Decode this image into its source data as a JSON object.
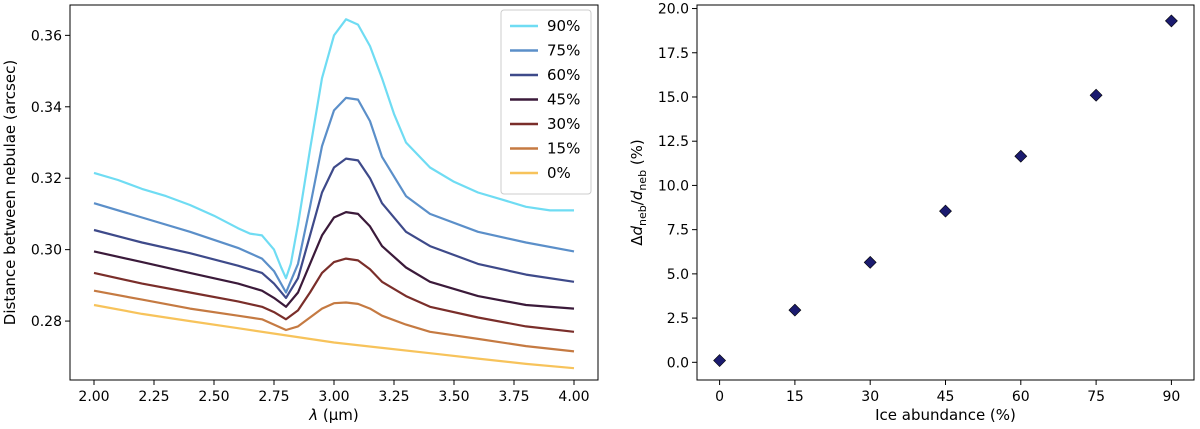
{
  "chart_data": [
    {
      "type": "line",
      "xlabel_symbol": "λ",
      "xlabel_unit": "(μm)",
      "ylabel": "Distance between nebulae (arcsec)",
      "xlim": [
        1.9,
        4.1
      ],
      "ylim": [
        0.2635,
        0.3685
      ],
      "xticks": [
        2.0,
        2.25,
        2.5,
        2.75,
        3.0,
        3.25,
        3.5,
        3.75,
        4.0
      ],
      "xtick_labels": [
        "2.00",
        "2.25",
        "2.50",
        "2.75",
        "3.00",
        "3.25",
        "3.50",
        "3.75",
        "4.00"
      ],
      "yticks": [
        0.28,
        0.3,
        0.32,
        0.34,
        0.36
      ],
      "ytick_labels": [
        "0.28",
        "0.30",
        "0.32",
        "0.34",
        "0.36"
      ],
      "legend_position": "top-right",
      "series": [
        {
          "name": "90%",
          "color": "#6fdcf3",
          "x": [
            2.0,
            2.1,
            2.2,
            2.3,
            2.4,
            2.5,
            2.6,
            2.65,
            2.7,
            2.75,
            2.78,
            2.8,
            2.82,
            2.85,
            2.9,
            2.95,
            3.0,
            3.05,
            3.1,
            3.15,
            3.2,
            3.25,
            3.3,
            3.4,
            3.5,
            3.6,
            3.7,
            3.8,
            3.9,
            4.0
          ],
          "values": [
            0.3215,
            0.3195,
            0.317,
            0.315,
            0.3125,
            0.3095,
            0.306,
            0.3045,
            0.304,
            0.3,
            0.295,
            0.292,
            0.296,
            0.307,
            0.328,
            0.348,
            0.36,
            0.3645,
            0.363,
            0.357,
            0.348,
            0.338,
            0.33,
            0.323,
            0.319,
            0.316,
            0.314,
            0.312,
            0.311,
            0.311
          ]
        },
        {
          "name": "75%",
          "color": "#5b8fc9",
          "x": [
            2.0,
            2.2,
            2.4,
            2.6,
            2.7,
            2.75,
            2.8,
            2.85,
            2.9,
            2.95,
            3.0,
            3.05,
            3.1,
            3.15,
            3.2,
            3.3,
            3.4,
            3.6,
            3.8,
            4.0
          ],
          "values": [
            0.313,
            0.309,
            0.305,
            0.3005,
            0.2975,
            0.294,
            0.288,
            0.296,
            0.312,
            0.329,
            0.339,
            0.3425,
            0.342,
            0.336,
            0.326,
            0.315,
            0.31,
            0.305,
            0.302,
            0.2995
          ]
        },
        {
          "name": "60%",
          "color": "#3e4a8a",
          "x": [
            2.0,
            2.2,
            2.4,
            2.6,
            2.7,
            2.75,
            2.8,
            2.85,
            2.9,
            2.95,
            3.0,
            3.05,
            3.1,
            3.15,
            3.2,
            3.3,
            3.4,
            3.6,
            3.8,
            4.0
          ],
          "values": [
            0.3055,
            0.302,
            0.299,
            0.2955,
            0.2935,
            0.2905,
            0.2865,
            0.292,
            0.304,
            0.316,
            0.323,
            0.3255,
            0.325,
            0.32,
            0.313,
            0.305,
            0.301,
            0.296,
            0.293,
            0.291
          ]
        },
        {
          "name": "45%",
          "color": "#3b1a3a",
          "x": [
            2.0,
            2.2,
            2.4,
            2.6,
            2.7,
            2.75,
            2.8,
            2.85,
            2.9,
            2.95,
            3.0,
            3.05,
            3.1,
            3.15,
            3.2,
            3.3,
            3.4,
            3.6,
            3.8,
            4.0
          ],
          "values": [
            0.2995,
            0.2965,
            0.2935,
            0.2905,
            0.2885,
            0.2865,
            0.284,
            0.288,
            0.296,
            0.304,
            0.309,
            0.3105,
            0.31,
            0.3065,
            0.301,
            0.295,
            0.291,
            0.287,
            0.2845,
            0.2835
          ]
        },
        {
          "name": "30%",
          "color": "#7a2e2a",
          "x": [
            2.0,
            2.2,
            2.4,
            2.6,
            2.7,
            2.75,
            2.8,
            2.85,
            2.9,
            2.95,
            3.0,
            3.05,
            3.1,
            3.15,
            3.2,
            3.3,
            3.4,
            3.6,
            3.8,
            4.0
          ],
          "values": [
            0.2935,
            0.2905,
            0.288,
            0.2855,
            0.284,
            0.2825,
            0.2805,
            0.283,
            0.288,
            0.2935,
            0.2965,
            0.2975,
            0.297,
            0.2945,
            0.291,
            0.287,
            0.284,
            0.281,
            0.2785,
            0.277
          ]
        },
        {
          "name": "15%",
          "color": "#c57a42",
          "x": [
            2.0,
            2.2,
            2.4,
            2.6,
            2.7,
            2.75,
            2.8,
            2.85,
            2.9,
            2.95,
            3.0,
            3.05,
            3.1,
            3.15,
            3.2,
            3.3,
            3.4,
            3.6,
            3.8,
            4.0
          ],
          "values": [
            0.2885,
            0.286,
            0.2835,
            0.2815,
            0.2805,
            0.279,
            0.2775,
            0.2785,
            0.281,
            0.2835,
            0.285,
            0.2852,
            0.2848,
            0.2835,
            0.2815,
            0.279,
            0.277,
            0.275,
            0.273,
            0.2715
          ]
        },
        {
          "name": "0%",
          "color": "#f7c35b",
          "x": [
            2.0,
            2.2,
            2.4,
            2.6,
            2.8,
            3.0,
            3.2,
            3.4,
            3.6,
            3.8,
            4.0
          ],
          "values": [
            0.2845,
            0.282,
            0.28,
            0.278,
            0.276,
            0.274,
            0.2725,
            0.271,
            0.2695,
            0.268,
            0.2668
          ]
        }
      ]
    },
    {
      "type": "scatter",
      "xlabel": "Ice abundance (%)",
      "ylabel_prefix": "Δd",
      "ylabel_sub": "neb",
      "ylabel_mid": "/d",
      "ylabel_sub2": "neb",
      "ylabel_suffix": " (%)",
      "xlim": [
        -4.5,
        94.5
      ],
      "ylim": [
        -1.0,
        20.2
      ],
      "xticks": [
        0,
        15,
        30,
        45,
        60,
        75,
        90
      ],
      "xtick_labels": [
        "0",
        "15",
        "30",
        "45",
        "60",
        "75",
        "90"
      ],
      "yticks": [
        0.0,
        2.5,
        5.0,
        7.5,
        10.0,
        12.5,
        15.0,
        17.5,
        20.0
      ],
      "ytick_labels": [
        "0.0",
        "2.5",
        "5.0",
        "7.5",
        "10.0",
        "12.5",
        "15.0",
        "17.5",
        "20.0"
      ],
      "marker_color": "#1b1b6f",
      "x": [
        0,
        15,
        30,
        45,
        60,
        75,
        90
      ],
      "values": [
        0.1,
        2.95,
        5.65,
        8.55,
        11.65,
        15.1,
        19.3
      ]
    }
  ]
}
